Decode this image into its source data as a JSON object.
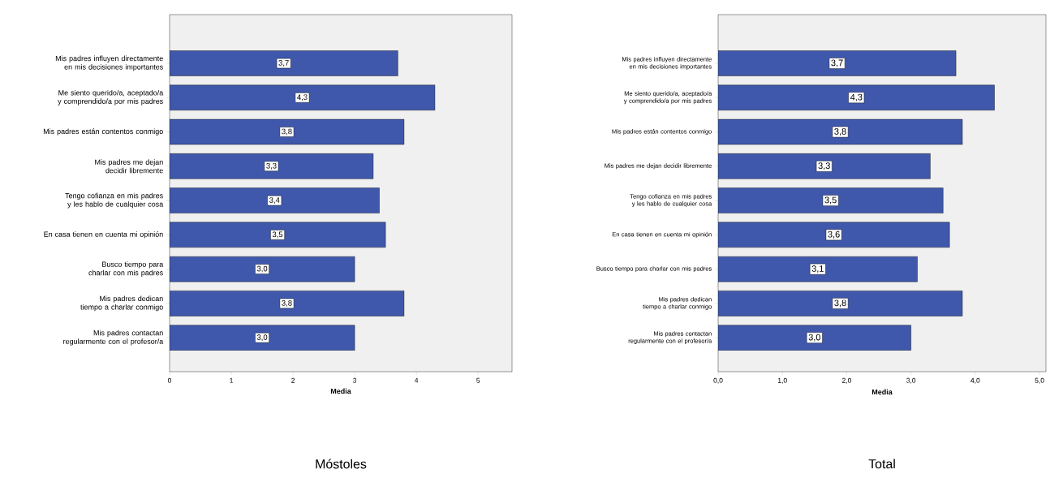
{
  "chart_data": [
    {
      "type": "bar",
      "orientation": "horizontal",
      "title": "Móstoles",
      "xlabel": "Media",
      "categories": [
        "Mis padres influyen directamente en mis decisiones importantes",
        "Me siento querido/a, aceptado/a y comprendido/a por mis padres",
        "Mis padres están contentos conmigo",
        "Mis padres me dejan decidir libremente",
        "Tengo cofianza en mis padres y les hablo de cualquier cosa",
        "En casa tienen en cuenta mi opinión",
        "Busco tiempo para charlar con mis padres",
        "Mis padres dedican tiempo a charlar conmigo",
        "Mis padres contactan regularmente con el profesor/a"
      ],
      "values": [
        3.7,
        4.3,
        3.8,
        3.3,
        3.4,
        3.5,
        3.0,
        3.8,
        3.0
      ],
      "value_labels": [
        "3,7",
        "4,3",
        "3,8",
        "3,3",
        "3,4",
        "3,5",
        "3,0",
        "3,8",
        "3,0"
      ],
      "color": "#3f58ab",
      "xlim": [
        0,
        5.55
      ],
      "xticks": [
        0,
        1,
        2,
        3,
        4,
        5
      ]
    },
    {
      "type": "bar",
      "orientation": "horizontal",
      "title": "Total",
      "xlabel": "Media",
      "categories": [
        "Mis padres influyen directamente en mis decisiones importantes",
        "Me siento querido/a, aceptado/a y comprendido/a por mis padres",
        "Mis padres están contentos conmigo",
        "Mis padres me dejan decidir libremente",
        "Tengo cofianza en mis padres y les hablo de cualquier cosa",
        "En casa tienen en cuenta mi opinión",
        "Busco tiempo para charlar con mis padres",
        "Mis padres dedican tiempo a charlar conmigo",
        "Mis padres contactan regularmente con el profesor/a"
      ],
      "values": [
        3.7,
        4.3,
        3.8,
        3.3,
        3.5,
        3.6,
        3.1,
        3.8,
        3.0
      ],
      "value_labels": [
        "3,7",
        "4,3",
        "3,8",
        "3,3",
        "3,5",
        "3,6",
        "3,1",
        "3,8",
        "3,0"
      ],
      "color": "#3f58ab",
      "xlim": [
        0,
        5.1
      ],
      "xticks": [
        {
          "value": 0,
          "label": "0,0"
        },
        {
          "value": 1,
          "label": "1,0"
        },
        {
          "value": 2,
          "label": "2,0"
        },
        {
          "value": 3,
          "label": "3,0"
        },
        {
          "value": 4,
          "label": "4,0"
        },
        {
          "value": 5,
          "label": "5,0"
        }
      ]
    }
  ]
}
